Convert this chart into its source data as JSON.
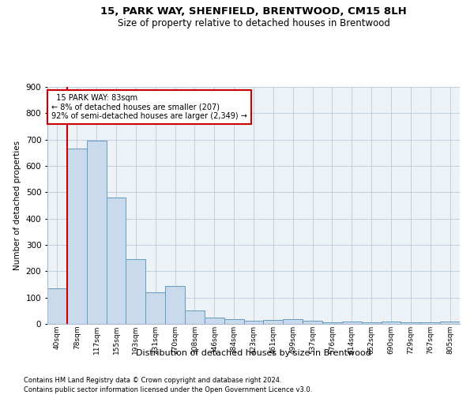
{
  "title1": "15, PARK WAY, SHENFIELD, BRENTWOOD, CM15 8LH",
  "title2": "Size of property relative to detached houses in Brentwood",
  "xlabel": "Distribution of detached houses by size in Brentwood",
  "ylabel": "Number of detached properties",
  "footnote1": "Contains HM Land Registry data © Crown copyright and database right 2024.",
  "footnote2": "Contains public sector information licensed under the Open Government Licence v3.0.",
  "bar_color": "#c8daeb",
  "bar_edge_color": "#6699bb",
  "annotation_box_color": "#ffffff",
  "annotation_border_color": "#cc0000",
  "vertical_line_color": "#cc0000",
  "categories": [
    "40sqm",
    "78sqm",
    "117sqm",
    "155sqm",
    "193sqm",
    "231sqm",
    "270sqm",
    "308sqm",
    "346sqm",
    "384sqm",
    "423sqm",
    "461sqm",
    "499sqm",
    "537sqm",
    "576sqm",
    "614sqm",
    "652sqm",
    "690sqm",
    "729sqm",
    "767sqm",
    "805sqm"
  ],
  "values": [
    135,
    665,
    695,
    480,
    245,
    120,
    145,
    50,
    25,
    18,
    12,
    15,
    18,
    12,
    7,
    8,
    5,
    10,
    5,
    7,
    10
  ],
  "property_label": "15 PARK WAY: 83sqm",
  "pct_smaller": 8,
  "count_smaller": 207,
  "pct_larger_semi": 92,
  "count_larger_semi": 2349,
  "ylim": [
    0,
    900
  ],
  "yticks": [
    0,
    100,
    200,
    300,
    400,
    500,
    600,
    700,
    800,
    900
  ],
  "background_color": "#edf2f7",
  "fig_width": 6.0,
  "fig_height": 5.0,
  "dpi": 100
}
